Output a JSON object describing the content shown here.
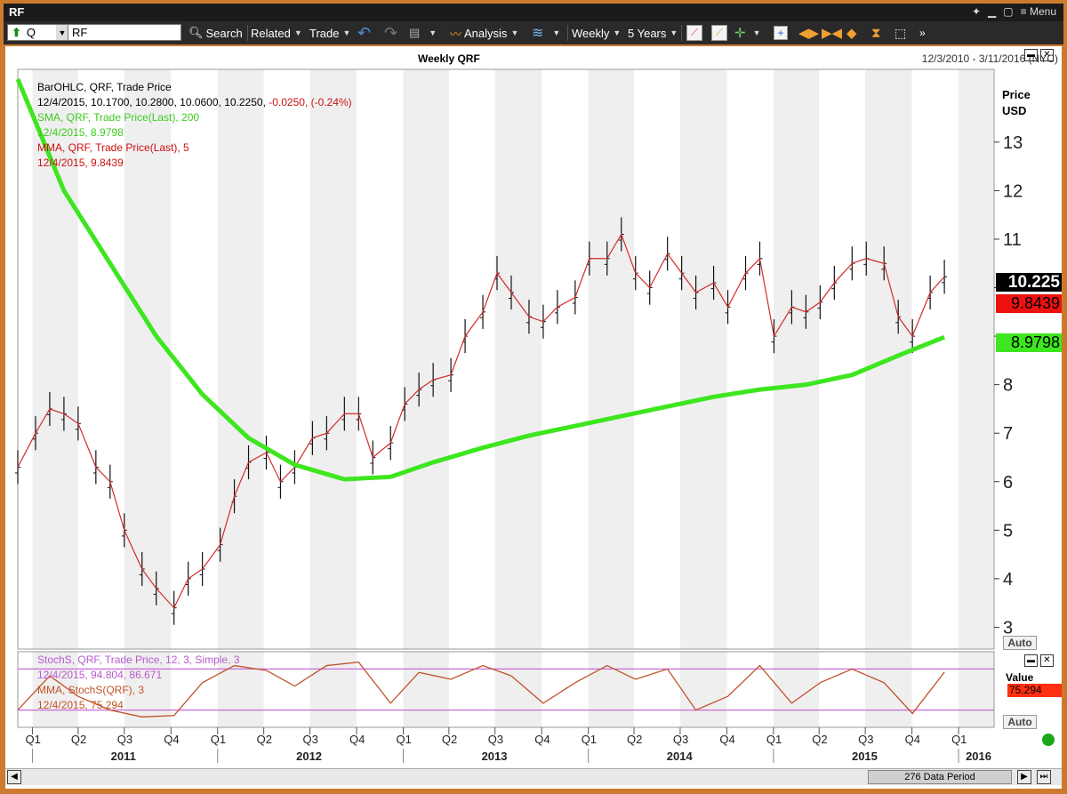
{
  "window": {
    "title": "RF",
    "menu_label": "Menu",
    "ctrl_icons": [
      "pin-icon",
      "minimize-icon",
      "restore-icon",
      "close-icon"
    ]
  },
  "toolbar": {
    "symbol_type": "Q",
    "symbol_value": "RF",
    "search": "Search",
    "related": "Related",
    "trade": "Trade",
    "analysis": "Analysis",
    "periodicity": "Weekly",
    "range": "5 Years"
  },
  "chart": {
    "title": "Weekly QRF",
    "date_range": "12/3/2010 - 3/11/2016 (NYC)",
    "price_axis_label_1": "Price",
    "price_axis_label_2": "USD",
    "auto_label": "Auto",
    "auto_label_lower": "Auto",
    "value_label": "Value",
    "data_period": "276 Data Period",
    "colors": {
      "sma": "#3de61f",
      "mma": "#d42a2a",
      "stoch": "#c86ad8",
      "stoch_mma": "#c0522a",
      "bars": "#111111",
      "shade": "#efefef"
    }
  },
  "legend": {
    "bar_title": "BarOHLC, QRF, Trade Price",
    "bar_values": "12/4/2015, 10.1700, 10.2800, 10.0600, 10.2250,",
    "bar_change": "-0.0250, (-0.24%)",
    "sma_title": "SMA, QRF, Trade Price(Last),  200",
    "sma_values": "12/4/2015, 8.9798",
    "mma_title": "MMA, QRF, Trade Price(Last),  5",
    "mma_values": "12/4/2015, 9.8439"
  },
  "lower_legend": {
    "stoch_title": "StochS, QRF, Trade Price,  12, 3, Simple, 3",
    "stoch_values": "12/4/2015, 94.804, 86.671",
    "mma_title": "MMA, StochS(QRF),  3",
    "mma_values": "12/4/2015, 75.294"
  },
  "price_tags": {
    "last": "10.225",
    "mma": "9.8439",
    "sma": "8.9798",
    "stoch_mma": "75.294"
  },
  "chart_data": {
    "type": "bar",
    "title": "Weekly QRF",
    "y_axis": {
      "label": "Price USD",
      "ticks": [
        3,
        4,
        5,
        6,
        7,
        8,
        9,
        10,
        11,
        12,
        13
      ],
      "tick_labels": [
        "3",
        "4",
        "5",
        "6",
        "7",
        "8",
        "",
        "",
        "11",
        "12",
        "13"
      ],
      "ylim": [
        2.55,
        14.5
      ]
    },
    "x_axis": {
      "quarters": [
        "Q1",
        "Q2",
        "Q3",
        "Q4",
        "Q1",
        "Q2",
        "Q3",
        "Q4",
        "Q1",
        "Q2",
        "Q3",
        "Q4",
        "Q1",
        "Q2",
        "Q3",
        "Q4",
        "Q1",
        "Q2",
        "Q3",
        "Q4",
        "Q1"
      ],
      "years": [
        "2011",
        "2012",
        "2013",
        "2014",
        "2015",
        "2016"
      ],
      "range": [
        "2010-12-03",
        "2016-03-11"
      ]
    },
    "close_series": [
      {
        "t": "2010-12-03",
        "v": 6.3
      },
      {
        "t": "2011-01-07",
        "v": 7.0
      },
      {
        "t": "2011-02-04",
        "v": 7.5
      },
      {
        "t": "2011-03-04",
        "v": 7.4
      },
      {
        "t": "2011-04-01",
        "v": 7.2
      },
      {
        "t": "2011-05-06",
        "v": 6.3
      },
      {
        "t": "2011-06-03",
        "v": 6.0
      },
      {
        "t": "2011-07-01",
        "v": 5.0
      },
      {
        "t": "2011-08-05",
        "v": 4.2
      },
      {
        "t": "2011-09-02",
        "v": 3.8
      },
      {
        "t": "2011-10-07",
        "v": 3.4
      },
      {
        "t": "2011-11-04",
        "v": 4.0
      },
      {
        "t": "2011-12-02",
        "v": 4.2
      },
      {
        "t": "2012-01-06",
        "v": 4.7
      },
      {
        "t": "2012-02-03",
        "v": 5.7
      },
      {
        "t": "2012-03-02",
        "v": 6.4
      },
      {
        "t": "2012-04-06",
        "v": 6.6
      },
      {
        "t": "2012-05-04",
        "v": 6.0
      },
      {
        "t": "2012-06-01",
        "v": 6.3
      },
      {
        "t": "2012-07-06",
        "v": 6.9
      },
      {
        "t": "2012-08-03",
        "v": 7.0
      },
      {
        "t": "2012-09-07",
        "v": 7.4
      },
      {
        "t": "2012-10-05",
        "v": 7.4
      },
      {
        "t": "2012-11-02",
        "v": 6.5
      },
      {
        "t": "2012-12-07",
        "v": 6.8
      },
      {
        "t": "2013-01-04",
        "v": 7.6
      },
      {
        "t": "2013-02-01",
        "v": 7.9
      },
      {
        "t": "2013-03-01",
        "v": 8.1
      },
      {
        "t": "2013-04-05",
        "v": 8.2
      },
      {
        "t": "2013-05-03",
        "v": 9.0
      },
      {
        "t": "2013-06-07",
        "v": 9.5
      },
      {
        "t": "2013-07-05",
        "v": 10.3
      },
      {
        "t": "2013-08-02",
        "v": 9.9
      },
      {
        "t": "2013-09-06",
        "v": 9.4
      },
      {
        "t": "2013-10-04",
        "v": 9.3
      },
      {
        "t": "2013-11-01",
        "v": 9.6
      },
      {
        "t": "2013-12-06",
        "v": 9.8
      },
      {
        "t": "2014-01-03",
        "v": 10.6
      },
      {
        "t": "2014-02-07",
        "v": 10.6
      },
      {
        "t": "2014-03-07",
        "v": 11.1
      },
      {
        "t": "2014-04-04",
        "v": 10.3
      },
      {
        "t": "2014-05-02",
        "v": 10.0
      },
      {
        "t": "2014-06-06",
        "v": 10.7
      },
      {
        "t": "2014-07-04",
        "v": 10.3
      },
      {
        "t": "2014-08-01",
        "v": 9.9
      },
      {
        "t": "2014-09-05",
        "v": 10.1
      },
      {
        "t": "2014-10-03",
        "v": 9.6
      },
      {
        "t": "2014-11-07",
        "v": 10.3
      },
      {
        "t": "2014-12-05",
        "v": 10.6
      },
      {
        "t": "2015-01-02",
        "v": 9.0
      },
      {
        "t": "2015-02-06",
        "v": 9.6
      },
      {
        "t": "2015-03-06",
        "v": 9.5
      },
      {
        "t": "2015-04-03",
        "v": 9.7
      },
      {
        "t": "2015-05-01",
        "v": 10.1
      },
      {
        "t": "2015-06-05",
        "v": 10.5
      },
      {
        "t": "2015-07-03",
        "v": 10.6
      },
      {
        "t": "2015-08-07",
        "v": 10.5
      },
      {
        "t": "2015-09-04",
        "v": 9.4
      },
      {
        "t": "2015-10-02",
        "v": 9.0
      },
      {
        "t": "2015-11-06",
        "v": 9.9
      },
      {
        "t": "2015-12-04",
        "v": 10.225
      }
    ],
    "sma_200": [
      {
        "t": "2010-12-03",
        "v": 14.3
      },
      {
        "t": "2011-03-04",
        "v": 12.0
      },
      {
        "t": "2011-06-03",
        "v": 10.5
      },
      {
        "t": "2011-09-02",
        "v": 9.0
      },
      {
        "t": "2011-12-02",
        "v": 7.8
      },
      {
        "t": "2012-03-02",
        "v": 6.9
      },
      {
        "t": "2012-06-01",
        "v": 6.35
      },
      {
        "t": "2012-09-07",
        "v": 6.05
      },
      {
        "t": "2012-12-07",
        "v": 6.1
      },
      {
        "t": "2013-03-01",
        "v": 6.4
      },
      {
        "t": "2013-06-07",
        "v": 6.7
      },
      {
        "t": "2013-09-06",
        "v": 6.95
      },
      {
        "t": "2013-12-06",
        "v": 7.15
      },
      {
        "t": "2014-03-07",
        "v": 7.35
      },
      {
        "t": "2014-06-06",
        "v": 7.55
      },
      {
        "t": "2014-09-05",
        "v": 7.75
      },
      {
        "t": "2014-12-05",
        "v": 7.9
      },
      {
        "t": "2015-03-06",
        "v": 8.0
      },
      {
        "t": "2015-06-05",
        "v": 8.2
      },
      {
        "t": "2015-09-04",
        "v": 8.6
      },
      {
        "t": "2015-12-04",
        "v": 8.9798
      }
    ],
    "stoch": {
      "levels": [
        20,
        80
      ],
      "values": [
        {
          "t": "2010-12-03",
          "v": 20
        },
        {
          "t": "2011-02-04",
          "v": 70
        },
        {
          "t": "2011-04-01",
          "v": 40
        },
        {
          "t": "2011-06-03",
          "v": 20
        },
        {
          "t": "2011-08-05",
          "v": 10
        },
        {
          "t": "2011-10-07",
          "v": 12
        },
        {
          "t": "2011-12-02",
          "v": 60
        },
        {
          "t": "2012-02-03",
          "v": 85
        },
        {
          "t": "2012-04-06",
          "v": 78
        },
        {
          "t": "2012-06-01",
          "v": 55
        },
        {
          "t": "2012-08-03",
          "v": 85
        },
        {
          "t": "2012-10-05",
          "v": 90
        },
        {
          "t": "2012-12-07",
          "v": 30
        },
        {
          "t": "2013-02-01",
          "v": 75
        },
        {
          "t": "2013-04-05",
          "v": 65
        },
        {
          "t": "2013-06-07",
          "v": 85
        },
        {
          "t": "2013-08-02",
          "v": 70
        },
        {
          "t": "2013-10-04",
          "v": 30
        },
        {
          "t": "2013-12-06",
          "v": 60
        },
        {
          "t": "2014-02-07",
          "v": 85
        },
        {
          "t": "2014-04-04",
          "v": 65
        },
        {
          "t": "2014-06-06",
          "v": 80
        },
        {
          "t": "2014-08-01",
          "v": 20
        },
        {
          "t": "2014-10-03",
          "v": 40
        },
        {
          "t": "2014-12-05",
          "v": 85
        },
        {
          "t": "2015-02-06",
          "v": 30
        },
        {
          "t": "2015-04-03",
          "v": 60
        },
        {
          "t": "2015-06-05",
          "v": 80
        },
        {
          "t": "2015-08-07",
          "v": 60
        },
        {
          "t": "2015-10-02",
          "v": 15
        },
        {
          "t": "2015-12-04",
          "v": 75.294
        }
      ]
    }
  }
}
